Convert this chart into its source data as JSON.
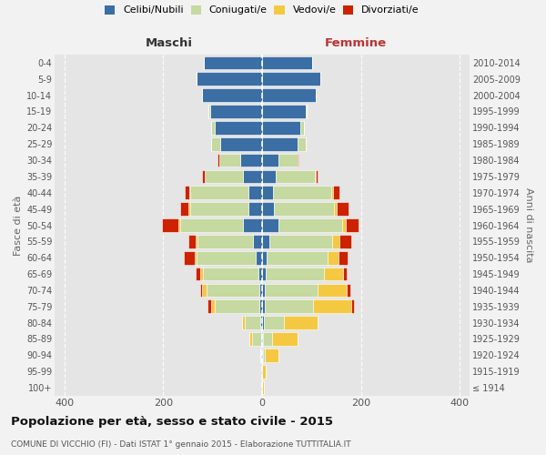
{
  "age_groups": [
    "100+",
    "95-99",
    "90-94",
    "85-89",
    "80-84",
    "75-79",
    "70-74",
    "65-69",
    "60-64",
    "55-59",
    "50-54",
    "45-49",
    "40-44",
    "35-39",
    "30-34",
    "25-29",
    "20-24",
    "15-19",
    "10-14",
    "5-9",
    "0-4"
  ],
  "birth_years": [
    "≤ 1914",
    "1915-1919",
    "1920-1924",
    "1925-1929",
    "1930-1934",
    "1935-1939",
    "1940-1944",
    "1945-1949",
    "1950-1954",
    "1955-1959",
    "1960-1964",
    "1965-1969",
    "1970-1974",
    "1975-1979",
    "1980-1984",
    "1985-1989",
    "1990-1994",
    "1995-1999",
    "2000-2004",
    "2005-2009",
    "2010-2014"
  ],
  "males_celibi": [
    0,
    0,
    1,
    2,
    3,
    5,
    5,
    8,
    12,
    18,
    38,
    28,
    28,
    38,
    45,
    85,
    95,
    105,
    122,
    133,
    118
  ],
  "males_coniugati": [
    0,
    0,
    2,
    18,
    32,
    90,
    108,
    112,
    120,
    112,
    128,
    118,
    118,
    78,
    42,
    18,
    8,
    4,
    0,
    0,
    0
  ],
  "males_vedovi": [
    0,
    0,
    1,
    5,
    6,
    8,
    8,
    5,
    5,
    5,
    4,
    3,
    2,
    0,
    0,
    0,
    0,
    0,
    0,
    0,
    0
  ],
  "males_divorziati": [
    0,
    0,
    0,
    0,
    0,
    8,
    5,
    10,
    22,
    14,
    32,
    16,
    9,
    6,
    3,
    0,
    0,
    0,
    0,
    0,
    0
  ],
  "females_celibi": [
    0,
    0,
    1,
    2,
    3,
    5,
    5,
    8,
    10,
    14,
    34,
    24,
    22,
    28,
    33,
    72,
    78,
    88,
    108,
    118,
    102
  ],
  "females_coniugati": [
    0,
    0,
    4,
    18,
    42,
    98,
    108,
    118,
    122,
    128,
    128,
    122,
    118,
    78,
    38,
    16,
    7,
    3,
    0,
    0,
    0
  ],
  "females_vedovi": [
    3,
    8,
    28,
    52,
    68,
    78,
    58,
    38,
    22,
    14,
    7,
    5,
    3,
    2,
    0,
    0,
    0,
    0,
    0,
    0,
    0
  ],
  "females_divorziati": [
    0,
    0,
    0,
    0,
    0,
    5,
    8,
    8,
    20,
    25,
    26,
    24,
    14,
    5,
    3,
    0,
    0,
    0,
    0,
    0,
    0
  ],
  "colors": {
    "celibi": "#3a6ea5",
    "coniugati": "#c5d9a0",
    "vedovi": "#f5c842",
    "divorziati": "#cc2200"
  },
  "title": "Popolazione per età, sesso e stato civile - 2015",
  "subtitle": "COMUNE DI VICCHIO (FI) - Dati ISTAT 1° gennaio 2015 - Elaborazione TUTTITALIA.IT",
  "label_maschi": "Maschi",
  "label_femmine": "Femmine",
  "ylabel_left": "Fasce di età",
  "ylabel_right": "Anni di nascita",
  "xlim": 420,
  "legend_labels": [
    "Celibi/Nubili",
    "Coniugati/e",
    "Vedovi/e",
    "Divorziati/e"
  ],
  "fig_bg": "#f2f2f2",
  "plot_bg": "#e5e5e5"
}
